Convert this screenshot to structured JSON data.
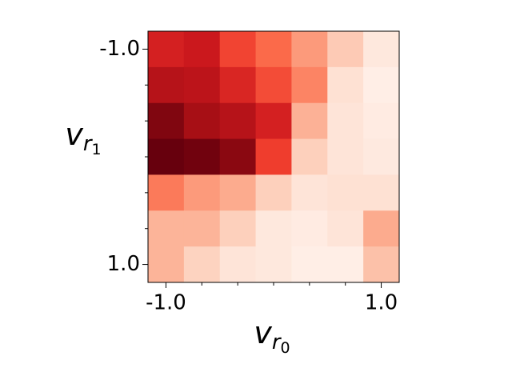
{
  "chart_data": {
    "type": "heatmap",
    "xlabel": {
      "main": "v",
      "sub": "r",
      "subsub": "0"
    },
    "ylabel": {
      "main": "v",
      "sub": "r",
      "subsub": "1"
    },
    "x": [
      -1,
      -0.6667,
      -0.3333,
      0,
      0.3333,
      0.6667,
      1
    ],
    "y": [
      -1,
      -0.6667,
      -0.3333,
      0,
      0.3333,
      0.6667,
      1
    ],
    "values": [
      [
        0.72,
        0.75,
        0.6,
        0.5,
        0.35,
        0.2,
        0.08
      ],
      [
        0.82,
        0.8,
        0.7,
        0.58,
        0.42,
        0.12,
        0.04
      ],
      [
        0.95,
        0.87,
        0.82,
        0.72,
        0.28,
        0.1,
        0.06
      ],
      [
        1.0,
        0.98,
        0.93,
        0.62,
        0.18,
        0.1,
        0.07
      ],
      [
        0.45,
        0.35,
        0.3,
        0.18,
        0.1,
        0.12,
        0.12
      ],
      [
        0.27,
        0.27,
        0.18,
        0.08,
        0.06,
        0.1,
        0.3
      ],
      [
        0.27,
        0.17,
        0.1,
        0.08,
        0.04,
        0.04,
        0.23
      ]
    ],
    "colormap": "Reds",
    "vlim": [
      0,
      1
    ],
    "xlim": [
      -1.1667,
      1.1667
    ],
    "ylim": [
      -1.1667,
      1.1667
    ],
    "y_inverted": true,
    "xticks": [
      {
        "value": -1,
        "label": "-1.0"
      },
      {
        "value": 1,
        "label": "1.0"
      }
    ],
    "yticks": [
      {
        "value": -1,
        "label": "-1.0"
      },
      {
        "value": 1,
        "label": "1.0"
      }
    ],
    "xminorticks": [
      -0.6667,
      -0.3333,
      0,
      0.3333,
      0.6667
    ],
    "yminorticks": [
      -0.6667,
      -0.3333,
      0,
      0.3333,
      0.6667
    ]
  }
}
